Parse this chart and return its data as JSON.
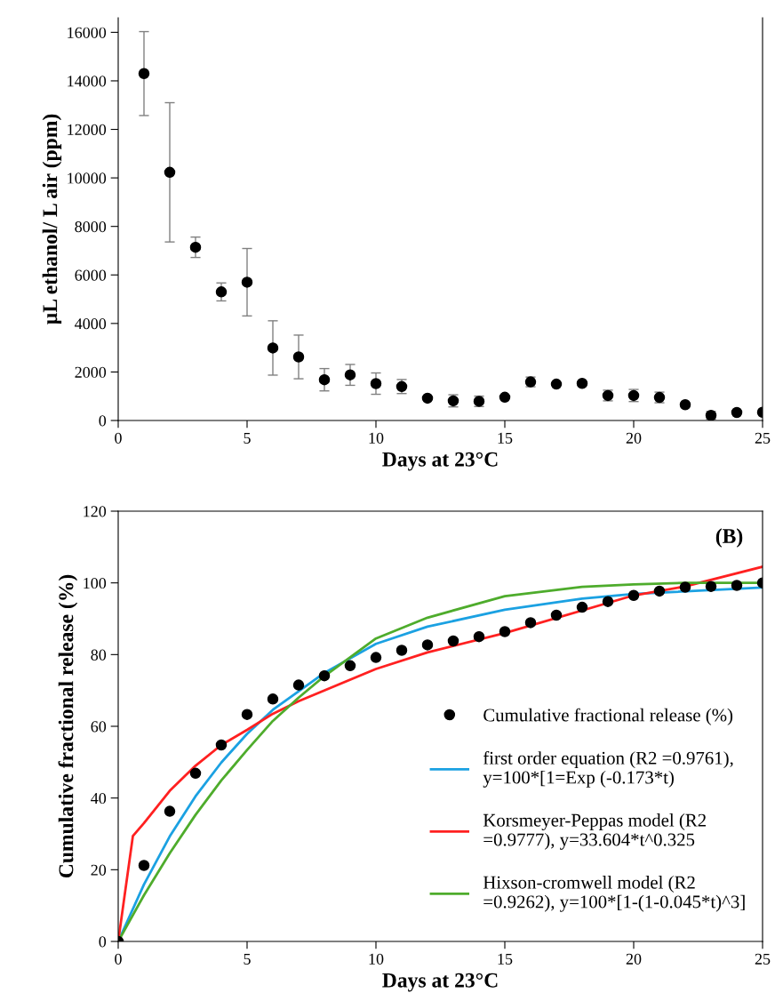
{
  "chart_data": [
    {
      "type": "scatter",
      "xlabel": "Days at 23°C",
      "ylabel": "µL ethanol/ L air (ppm)",
      "x": [
        1,
        2,
        3,
        4,
        5,
        6,
        7,
        8,
        9,
        10,
        11,
        12,
        13,
        14,
        15,
        16,
        17,
        18,
        19,
        20,
        21,
        22,
        23,
        24,
        25
      ],
      "series": [
        {
          "color": "#000000",
          "values": [
            14300,
            10230,
            7140,
            5300,
            5700,
            2990,
            2620,
            1680,
            1880,
            1520,
            1400,
            920,
            810,
            790,
            960,
            1590,
            1500,
            1530,
            1030,
            1030,
            950,
            650,
            210,
            330,
            340
          ],
          "errors": [
            1730,
            2870,
            420,
            370,
            1390,
            1120,
            900,
            460,
            430,
            440,
            290,
            null,
            250,
            215,
            null,
            200,
            null,
            null,
            220,
            250,
            220,
            null,
            160,
            null,
            null
          ]
        }
      ],
      "marker": "circle",
      "xlim": [
        0,
        25
      ],
      "xticks": [
        0,
        5,
        10,
        15,
        20,
        25
      ],
      "ylim": [
        0,
        16600
      ],
      "yticks": [
        0,
        2000,
        4000,
        6000,
        8000,
        10000,
        12000,
        14000,
        16000
      ],
      "grid": false,
      "legend": false
    },
    {
      "type": "line",
      "xlabel": "Days at 23°C",
      "ylabel": "Cumulative fractional release (%)",
      "annotations": [
        "(B)"
      ],
      "series": [
        {
          "type": "scatter",
          "name": "Cumulative fractional release (%)",
          "color": "#000000",
          "marker": "circle",
          "x": [
            0,
            1,
            2,
            3,
            4,
            5,
            6,
            7,
            8,
            9,
            10,
            11,
            12,
            13,
            14,
            15,
            16,
            17,
            18,
            19,
            20,
            21,
            22,
            23,
            24,
            25
          ],
          "values": [
            0,
            21.2,
            36.3,
            46.9,
            54.8,
            63.3,
            67.6,
            71.5,
            74.1,
            76.9,
            79.2,
            81.2,
            82.7,
            83.8,
            85.0,
            86.4,
            88.9,
            91.0,
            93.2,
            94.8,
            96.5,
            97.7,
            98.8,
            99.0,
            99.3,
            100
          ]
        },
        {
          "name": "first order equation (R2 =0.9761),\ny=100*[1=Exp (-0.173*t)",
          "color": "#1ba1e2",
          "marker": "none",
          "x": [
            0,
            1,
            2,
            3,
            4,
            5,
            6,
            8,
            10,
            12,
            15,
            18,
            20,
            25
          ],
          "values": [
            0,
            15.9,
            29.3,
            40.5,
            49.9,
            57.9,
            64.6,
            74.9,
            83.0,
            87.8,
            92.5,
            95.6,
            96.9,
            98.7
          ]
        },
        {
          "name": "Korsmeyer-Peppas model (R2\n=0.9777), y=33.604*t^0.325",
          "color": "#ff2020",
          "marker": "none",
          "x": [
            0,
            0.57,
            1,
            2,
            3,
            4,
            5,
            6,
            7,
            10,
            12,
            15,
            20,
            22,
            25
          ],
          "values": [
            0,
            29.4,
            33,
            42,
            49,
            54.8,
            59,
            63.5,
            67,
            76,
            80.6,
            86,
            96.5,
            99,
            104.5
          ]
        },
        {
          "name": "Hixson-cromwell model (R2\n=0.9262), y=100*[1-(1-0.045*t)^3]",
          "color": "#4eac2c",
          "marker": "none",
          "x": [
            0,
            1,
            2,
            3,
            4,
            5,
            6,
            7,
            8,
            10,
            12,
            15,
            18,
            20,
            22,
            25
          ],
          "values": [
            0,
            12.9,
            24.6,
            35.3,
            44.9,
            53.4,
            61.5,
            68,
            74,
            84.5,
            90.3,
            96.3,
            98.9,
            99.6,
            100,
            100
          ]
        }
      ],
      "xlim": [
        0,
        25
      ],
      "xticks": [
        0,
        5,
        10,
        15,
        20,
        25
      ],
      "ylim": [
        0,
        120
      ],
      "yticks": [
        0,
        20,
        40,
        60,
        80,
        100,
        120
      ],
      "grid": false,
      "legend": "bottom right",
      "line_style": "solid"
    }
  ]
}
